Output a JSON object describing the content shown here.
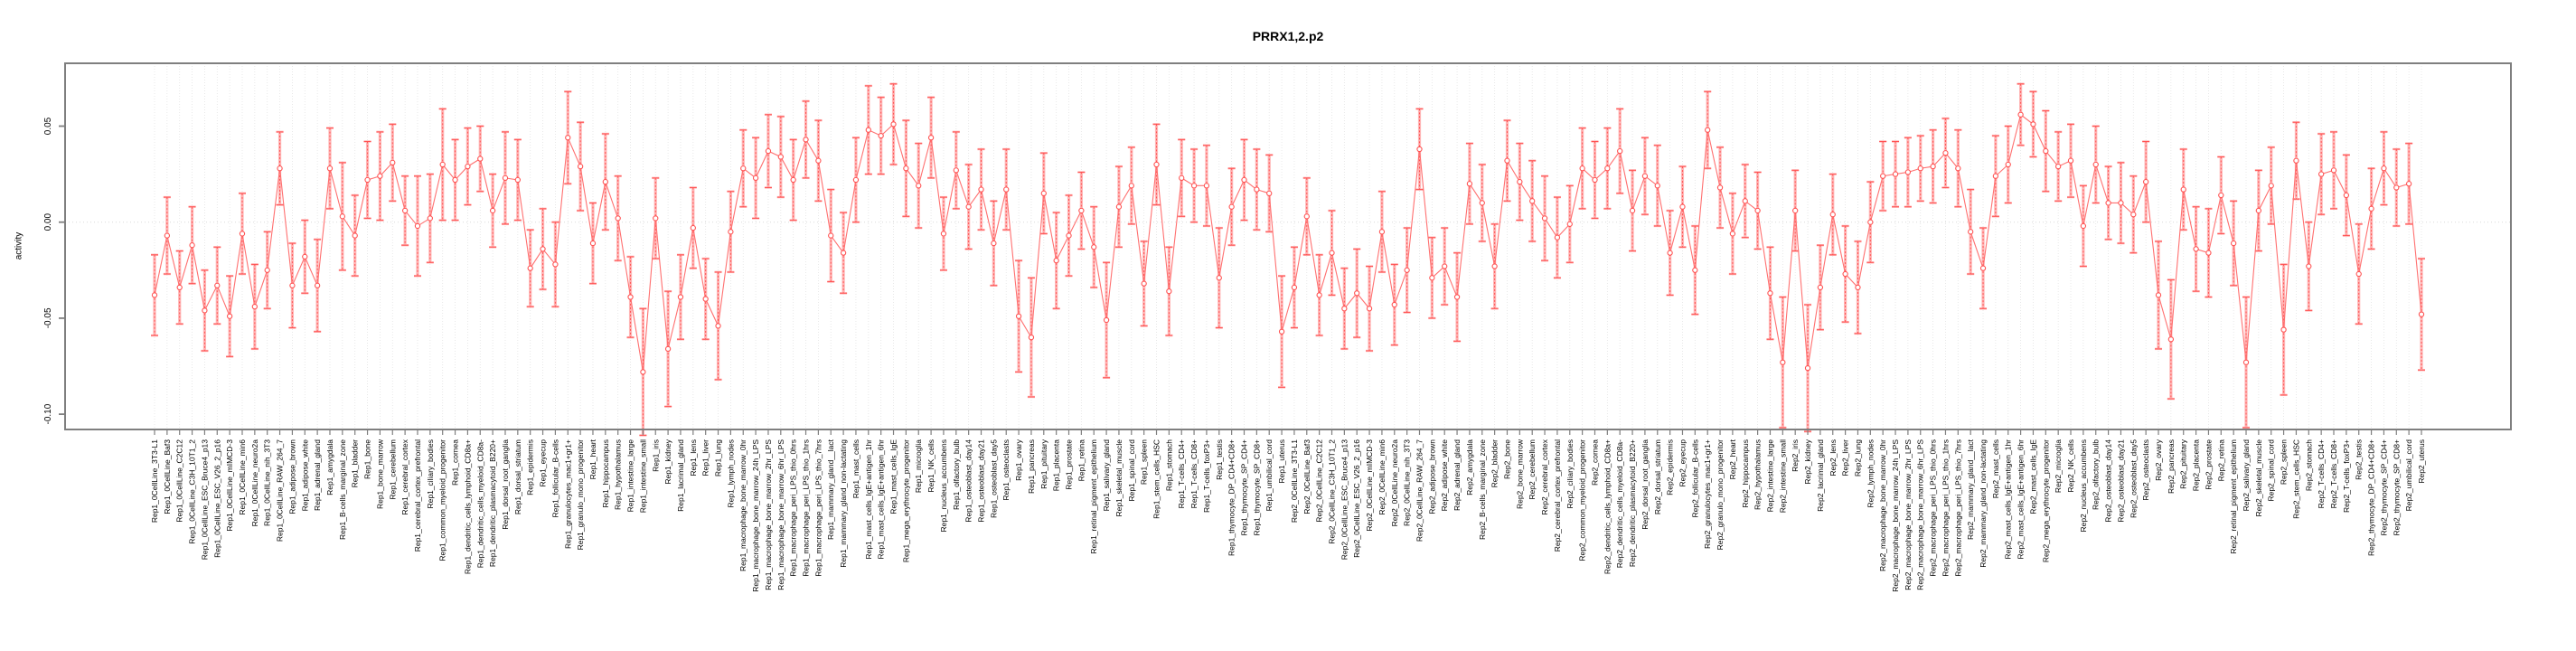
{
  "chart_data": {
    "type": "line",
    "title": "PRRX1,2.p2",
    "ylabel": "activity",
    "ylim": [
      -0.113,
      0.072
    ],
    "yticks": [
      0.05,
      0.0,
      -0.05,
      -0.1
    ],
    "ytick_labels": [
      "0.05",
      "0.00",
      "-0.05",
      "-0.10"
    ],
    "grid": {
      "vertical_dotted_per_sample": true,
      "horizontal_dotted_at_zero": true,
      "legend": "none"
    },
    "colors": {
      "point": "#ff5252",
      "line": "#ff7070",
      "error_bar_inner": "#ff5252",
      "error_bar_outer": "#ffb5b5",
      "gridline": "#e3e3e3",
      "axis_box": "#7f7f7f"
    },
    "categories": [
      "Rep1_0CellLine_3T3-L1",
      "Rep1_0CellLine_Baf3",
      "Rep1_0CellLine_C2C12",
      "Rep1_0CellLine_C3H_10T1_2",
      "Rep1_0CellLine_ESC_Bruce4_p13",
      "Rep1_0CellLine_ESC_V26_2_p16",
      "Rep1_0CellLine_mIMCD-3",
      "Rep1_0CellLine_min6",
      "Rep1_0CellLine_neuro2a",
      "Rep1_0CellLine_nih_3T3",
      "Rep1_0CellLine_RAW_264_7",
      "Rep1_adipose_brown",
      "Rep1_adipose_white",
      "Rep1_adrenal_gland",
      "Rep1_amygdala",
      "Rep1_B-cells_marginal_zone",
      "Rep1_bladder",
      "Rep1_bone",
      "Rep1_bone_marrow",
      "Rep1_cerebellum",
      "Rep1_cerebral_cortex",
      "Rep1_cerebral_cortex_prefrontal",
      "Rep1_ciliary_bodies",
      "Rep1_common_myeloid_progenitor",
      "Rep1_cornea",
      "Rep1_dendritic_cells_lymphoid_CD8a+",
      "Rep1_dendritic_cells_myeloid_CD8a-",
      "Rep1_dendritic_plasmacytoid_B220+",
      "Rep1_dorsal_root_ganglia",
      "Rep1_dorsal_striatum",
      "Rep1_epidermis",
      "Rep1_eyecup",
      "Rep1_follicular_B-cells",
      "Rep1_granulocytes_mac1+gr1+",
      "Rep1_granulo_mono_progenitor",
      "Rep1_heart",
      "Rep1_hippocampus",
      "Rep1_hypothalamus",
      "Rep1_intestine_large",
      "Rep1_intestine_small",
      "Rep1_iris",
      "Rep1_kidney",
      "Rep1_lacrimal_gland",
      "Rep1_lens",
      "Rep1_liver",
      "Rep1_lung",
      "Rep1_lymph_nodes",
      "Rep1_macrophage_bone_marrow_0hr",
      "Rep1_macrophage_bone_marrow_24h_LPS",
      "Rep1_macrophage_bone_marrow_2hr_LPS",
      "Rep1_macrophage_bone_marrow_6hr_LPS",
      "Rep1_macrophage_peri_LPS_thio_0hrs",
      "Rep1_macrophage_peri_LPS_thio_1hrs",
      "Rep1_macrophage_peri_LPS_thio_7hrs",
      "Rep1_mammary_gland__lact",
      "Rep1_mammary_gland_non-lactating",
      "Rep1_mast_cells",
      "Rep1_mast_cells_IgE+antigen_1hr",
      "Rep1_mast_cells_IgE+antigen_6hr",
      "Rep1_mast_cells_IgE",
      "Rep1_mega_erythrocyte_progenitor",
      "Rep1_microglia",
      "Rep1_NK_cells",
      "Rep1_nucleus_accumbens",
      "Rep1_olfactory_bulb",
      "Rep1_osteoblast_day14",
      "Rep1_osteoblast_day21",
      "Rep1_osteoblast_day5",
      "Rep1_osteoclasts",
      "Rep1_ovary",
      "Rep1_pancreas",
      "Rep1_pituitary",
      "Rep1_placenta",
      "Rep1_prostate",
      "Rep1_retina",
      "Rep1_retinal_pigment_epithelium",
      "Rep1_salivary_gland",
      "Rep1_skeletal_muscle",
      "Rep1_spinal_cord",
      "Rep1_spleen",
      "Rep1_stem_cells_HSC",
      "Rep1_stomach",
      "Rep1_T-cells_CD4+",
      "Rep1_T-cells_CD8+",
      "Rep1_T-cells_foxP3+",
      "Rep1_testis",
      "Rep1_thymocyte_DP_CD4+CD8+",
      "Rep1_thymocyte_SP_CD4+",
      "Rep1_thymocyte_SP_CD8+",
      "Rep1_umbilical_cord",
      "Rep1_uterus",
      "Rep2_0CellLine_3T3-L1",
      "Rep2_0CellLine_Baf3",
      "Rep2_0CellLine_C2C12",
      "Rep2_0CellLine_C3H_10T1_2",
      "Rep2_0CellLine_ESC_Bruce4_p13",
      "Rep2_0CellLine_ESC_V26_2_p16",
      "Rep2_0CellLine_mIMCD-3",
      "Rep2_0CellLine_min6",
      "Rep2_0CellLine_neuro2a",
      "Rep2_0CellLine_nih_3T3",
      "Rep2_0CellLine_RAW_264_7",
      "Rep2_adipose_brown",
      "Rep2_adipose_white",
      "Rep2_adrenal_gland",
      "Rep2_amygdala",
      "Rep2_B-cells_marginal_zone",
      "Rep2_bladder",
      "Rep2_bone",
      "Rep2_bone_marrow",
      "Rep2_cerebellum",
      "Rep2_cerebral_cortex",
      "Rep2_cerebral_cortex_prefrontal",
      "Rep2_ciliary_bodies",
      "Rep2_common_myeloid_progenitor",
      "Rep2_cornea",
      "Rep2_dendritic_cells_lymphoid_CD8a+",
      "Rep2_dendritic_cells_myeloid_CD8a-",
      "Rep2_dendritic_plasmacytoid_B220+",
      "Rep2_dorsal_root_ganglia",
      "Rep2_dorsal_striatum",
      "Rep2_epidermis",
      "Rep2_eyecup",
      "Rep2_follicular_B-cells",
      "Rep2_granulocytes_mac1+gr1+",
      "Rep2_granulo_mono_progenitor",
      "Rep2_heart",
      "Rep2_hippocampus",
      "Rep2_hypothalamus",
      "Rep2_intestine_large",
      "Rep2_intestine_small",
      "Rep2_iris",
      "Rep2_kidney",
      "Rep2_lacrimal_gland",
      "Rep2_lens",
      "Rep2_liver",
      "Rep2_lung",
      "Rep2_lymph_nodes",
      "Rep2_macrophage_bone_marrow_0hr",
      "Rep2_macrophage_bone_marrow_24h_LPS",
      "Rep2_macrophage_bone_marrow_2hr_LPS",
      "Rep2_macrophage_bone_marrow_6hr_LPS",
      "Rep2_macrophage_peri_LPS_thio_0hrs",
      "Rep2_macrophage_peri_LPS_thio_1hrs",
      "Rep2_macrophage_peri_LPS_thio_7hrs",
      "Rep2_mammary_gland__lact",
      "Rep2_mammary_gland_non-lactating",
      "Rep2_mast_cells",
      "Rep2_mast_cells_IgE+antigen_1hr",
      "Rep2_mast_cells_IgE+antigen_6hr",
      "Rep2_mast_cells_IgE",
      "Rep2_mega_erythrocyte_progenitor",
      "Rep2_microglia",
      "Rep2_NK_cells",
      "Rep2_nucleus_accumbens",
      "Rep2_olfactory_bulb",
      "Rep2_osteoblast_day14",
      "Rep2_osteoblast_day21",
      "Rep2_osteoblast_day5",
      "Rep2_osteoclasts",
      "Rep2_ovary",
      "Rep2_pancreas",
      "Rep2_pituitary",
      "Rep2_placenta",
      "Rep2_prostate",
      "Rep2_retina",
      "Rep2_retinal_pigment_epithelium",
      "Rep2_salivary_gland",
      "Rep2_skeletal_muscle",
      "Rep2_spinal_cord",
      "Rep2_spleen",
      "Rep2_stem_cells_HSC",
      "Rep2_stomach",
      "Rep2_T-cells_CD4+",
      "Rep2_T-cells_CD8+",
      "Rep2_T-cells_foxP3+",
      "Rep2_testis",
      "Rep2_thymocyte_DP_CD4+CD8+",
      "Rep2_thymocyte_SP_CD4+",
      "Rep2_thymocyte_SP_CD8+",
      "Rep2_umbilical_cord",
      "Rep2_uterus"
    ],
    "values": [
      -0.038,
      -0.007,
      -0.034,
      -0.012,
      -0.046,
      -0.033,
      -0.049,
      -0.006,
      -0.044,
      -0.025,
      0.028,
      -0.033,
      -0.018,
      -0.033,
      0.028,
      0.003,
      -0.007,
      0.022,
      0.024,
      0.031,
      0.006,
      -0.002,
      0.002,
      0.03,
      0.022,
      0.029,
      0.033,
      0.006,
      0.023,
      0.022,
      -0.024,
      -0.014,
      -0.022,
      0.044,
      0.029,
      -0.011,
      0.021,
      0.002,
      -0.039,
      -0.078,
      0.002,
      -0.066,
      -0.039,
      -0.003,
      -0.04,
      -0.054,
      -0.005,
      0.028,
      0.023,
      0.037,
      0.034,
      0.022,
      0.043,
      0.032,
      -0.007,
      -0.016,
      0.022,
      0.048,
      0.045,
      0.051,
      0.028,
      0.019,
      0.044,
      -0.006,
      0.027,
      0.008,
      0.017,
      -0.011,
      0.017,
      -0.049,
      -0.06,
      0.015,
      -0.02,
      -0.007,
      0.006,
      -0.013,
      -0.051,
      0.008,
      0.019,
      -0.032,
      0.03,
      -0.036,
      0.023,
      0.019,
      0.019,
      -0.029,
      0.008,
      0.022,
      0.017,
      0.015,
      -0.057,
      -0.034,
      0.003,
      -0.038,
      -0.016,
      -0.045,
      -0.037,
      -0.045,
      -0.005,
      -0.043,
      -0.025,
      0.038,
      -0.029,
      -0.023,
      -0.039,
      0.02,
      0.01,
      -0.023,
      0.032,
      0.021,
      0.011,
      0.002,
      -0.008,
      -0.001,
      0.028,
      0.022,
      0.028,
      0.037,
      0.006,
      0.024,
      0.019,
      -0.016,
      0.008,
      -0.025,
      0.048,
      0.018,
      -0.006,
      0.011,
      0.006,
      -0.037,
      -0.073,
      0.006,
      -0.076,
      -0.034,
      0.004,
      -0.027,
      -0.034,
      0.0,
      0.024,
      0.025,
      0.026,
      0.028,
      0.029,
      0.036,
      0.028,
      -0.005,
      -0.024,
      0.024,
      0.03,
      0.056,
      0.051,
      0.037,
      0.029,
      0.032,
      -0.002,
      0.03,
      0.01,
      0.01,
      0.004,
      0.021,
      -0.038,
      -0.061,
      0.017,
      -0.014,
      -0.016,
      0.014,
      -0.011,
      -0.073,
      0.006,
      0.019,
      -0.056,
      0.032,
      -0.023,
      0.025,
      0.027,
      0.014,
      -0.027,
      0.007,
      0.028,
      0.018,
      0.02,
      -0.048
    ],
    "errors": [
      0.021,
      0.02,
      0.019,
      0.02,
      0.021,
      0.02,
      0.021,
      0.021,
      0.022,
      0.02,
      0.019,
      0.022,
      0.019,
      0.024,
      0.021,
      0.028,
      0.021,
      0.02,
      0.023,
      0.02,
      0.018,
      0.026,
      0.023,
      0.029,
      0.021,
      0.02,
      0.017,
      0.019,
      0.024,
      0.021,
      0.02,
      0.021,
      0.022,
      0.024,
      0.023,
      0.021,
      0.025,
      0.022,
      0.021,
      0.033,
      0.021,
      0.03,
      0.022,
      0.021,
      0.021,
      0.028,
      0.021,
      0.02,
      0.021,
      0.019,
      0.021,
      0.021,
      0.02,
      0.021,
      0.024,
      0.021,
      0.022,
      0.023,
      0.02,
      0.021,
      0.025,
      0.022,
      0.021,
      0.019,
      0.02,
      0.022,
      0.021,
      0.022,
      0.021,
      0.029,
      0.031,
      0.021,
      0.025,
      0.021,
      0.02,
      0.021,
      0.03,
      0.021,
      0.02,
      0.022,
      0.021,
      0.023,
      0.02,
      0.019,
      0.021,
      0.026,
      0.02,
      0.021,
      0.021,
      0.02,
      0.029,
      0.021,
      0.02,
      0.021,
      0.022,
      0.021,
      0.023,
      0.022,
      0.021,
      0.021,
      0.022,
      0.021,
      0.021,
      0.02,
      0.023,
      0.021,
      0.02,
      0.022,
      0.021,
      0.02,
      0.021,
      0.022,
      0.021,
      0.02,
      0.021,
      0.02,
      0.021,
      0.022,
      0.021,
      0.02,
      0.021,
      0.022,
      0.021,
      0.023,
      0.02,
      0.021,
      0.021,
      0.019,
      0.02,
      0.024,
      0.034,
      0.021,
      0.033,
      0.022,
      0.021,
      0.025,
      0.024,
      0.021,
      0.018,
      0.017,
      0.018,
      0.017,
      0.019,
      0.018,
      0.02,
      0.022,
      0.021,
      0.021,
      0.02,
      0.016,
      0.017,
      0.021,
      0.018,
      0.019,
      0.021,
      0.02,
      0.019,
      0.021,
      0.02,
      0.021,
      0.028,
      0.031,
      0.021,
      0.022,
      0.023,
      0.02,
      0.022,
      0.034,
      0.021,
      0.02,
      0.034,
      0.02,
      0.023,
      0.021,
      0.02,
      0.021,
      0.026,
      0.021,
      0.019,
      0.02,
      0.021,
      0.029
    ]
  }
}
